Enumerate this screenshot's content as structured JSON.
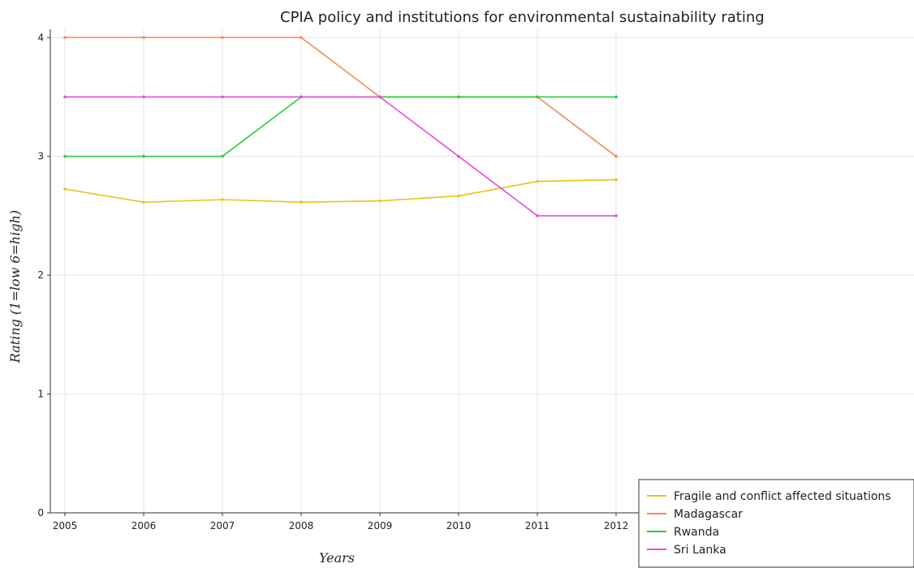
{
  "chart_data": {
    "type": "line",
    "title": "CPIA policy and institutions for environmental sustainability rating",
    "xlabel": "Years",
    "ylabel": "Rating (1=low 6=high)",
    "x": [
      "2005",
      "2006",
      "2007",
      "2008",
      "2009",
      "2010",
      "2011",
      "2012"
    ],
    "ylim": [
      0,
      4.07
    ],
    "yticks": [
      "0",
      "1",
      "2",
      "3",
      "4"
    ],
    "grid": true,
    "legend_position": "bottom-right",
    "series": [
      {
        "name": "Fragile and conflict affected situations",
        "color": "#e6c619",
        "values": [
          2.725,
          2.614,
          2.636,
          2.614,
          2.625,
          2.667,
          2.789,
          2.804
        ]
      },
      {
        "name": "Madagascar",
        "color": "#f08a5d",
        "values": [
          4.0,
          4.0,
          4.0,
          4.0,
          3.5,
          3.5,
          3.5,
          3.0
        ]
      },
      {
        "name": "Rwanda",
        "color": "#2ecc40",
        "values": [
          3.0,
          3.0,
          3.0,
          3.5,
          3.5,
          3.5,
          3.5,
          3.5
        ]
      },
      {
        "name": "Sri Lanka",
        "color": "#e64ed8",
        "values": [
          3.5,
          3.5,
          3.5,
          3.5,
          3.5,
          3.0,
          2.5,
          2.5
        ]
      }
    ]
  }
}
